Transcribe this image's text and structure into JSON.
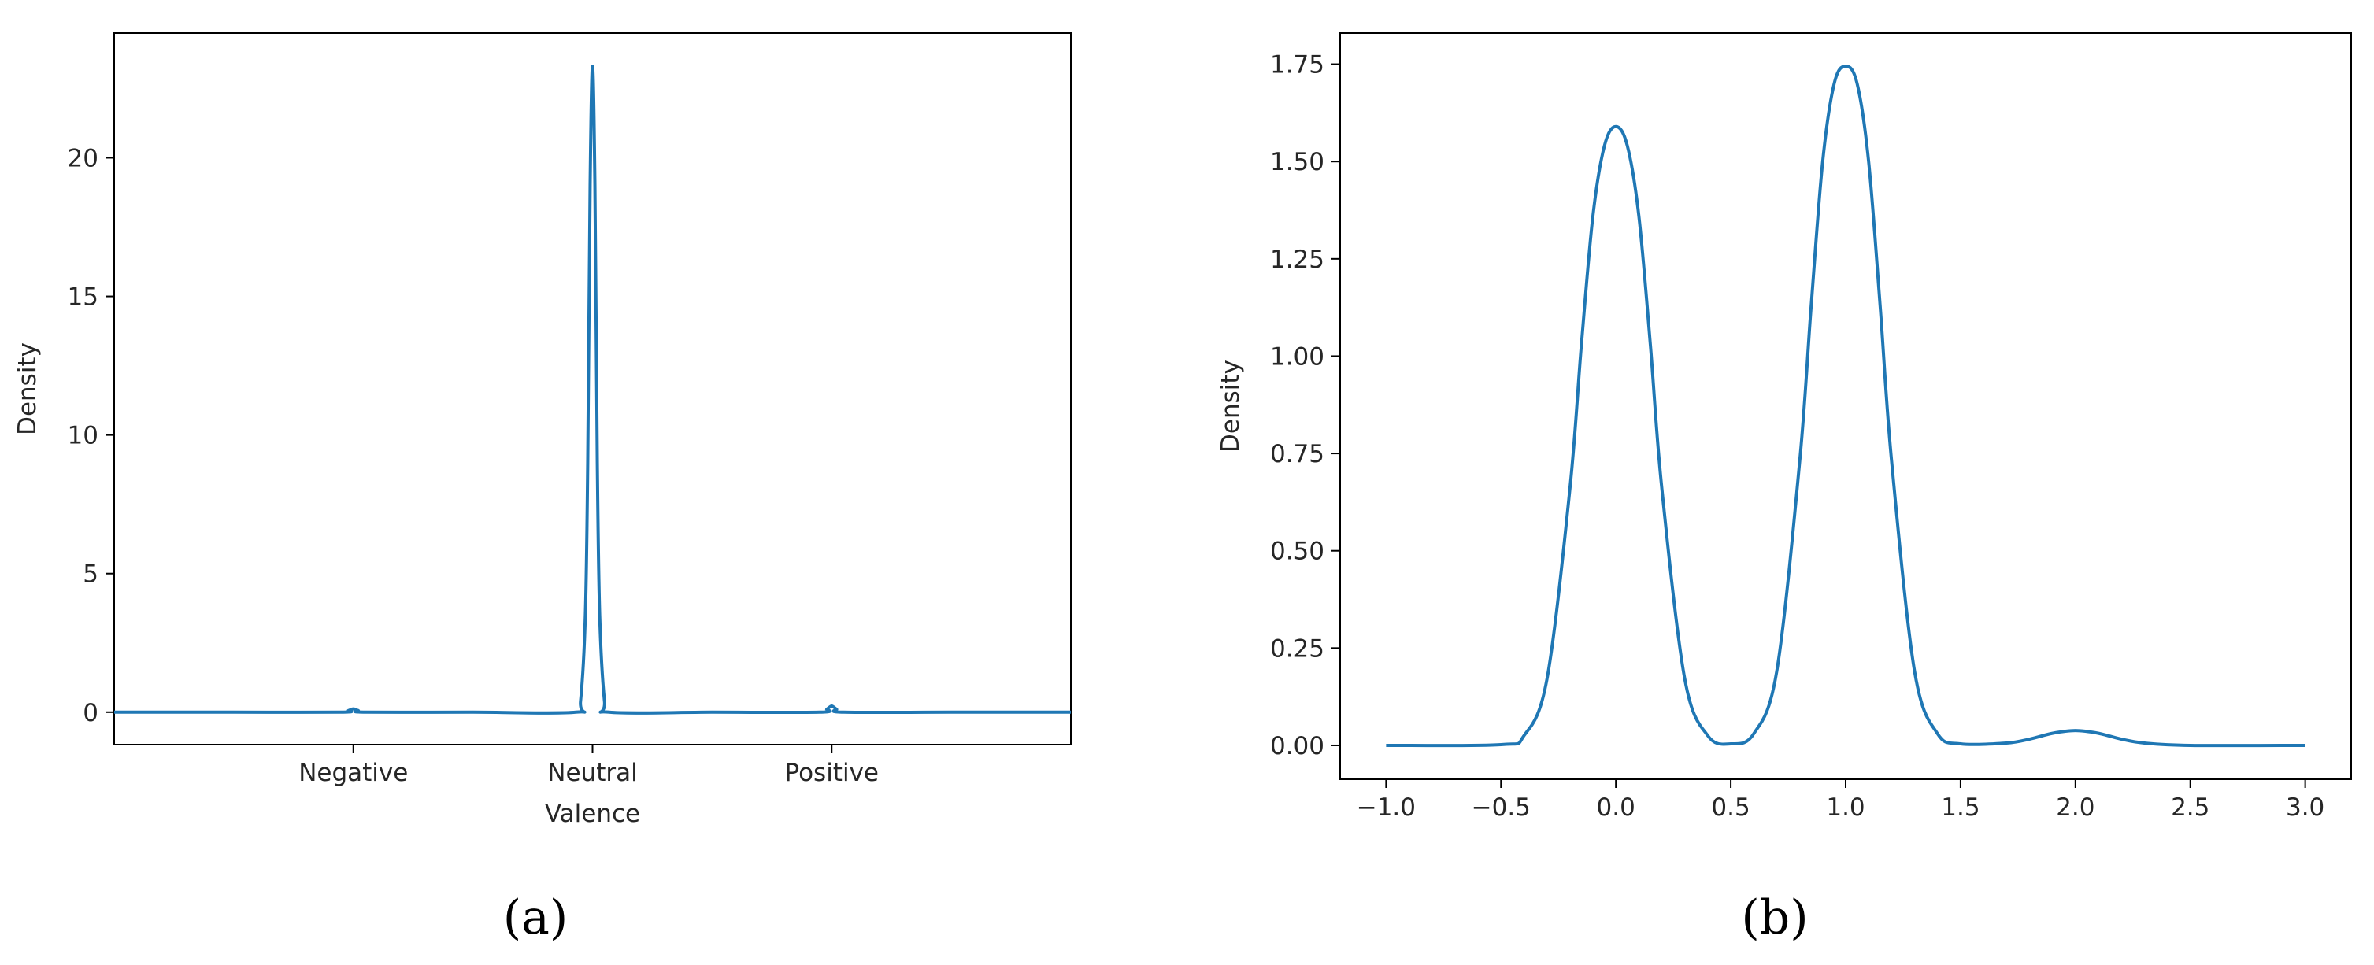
{
  "chart_data": [
    {
      "type": "line",
      "panel_label": "(a)",
      "xlabel": "Valence",
      "ylabel": "Density",
      "categories": [
        "Negative",
        "Neutral",
        "Positive"
      ],
      "category_x": [
        -1,
        0,
        1
      ],
      "xlim": [
        -2.0,
        2.0
      ],
      "ylim": [
        -1.17,
        24.5
      ],
      "yticks": [
        0,
        5,
        10,
        15,
        20
      ],
      "grid": false,
      "series": [
        {
          "color": "#1f77b4",
          "x": [
            -2.0,
            -1.5,
            -1.05,
            -1.02,
            -1.0,
            -0.98,
            -0.95,
            -0.5,
            -0.07,
            -0.05,
            -0.03,
            -0.02,
            -0.01,
            0.0,
            0.01,
            0.02,
            0.03,
            0.05,
            0.07,
            0.5,
            0.95,
            0.98,
            1.0,
            1.02,
            1.05,
            1.5,
            2.0
          ],
          "y": [
            0,
            0,
            0,
            0.06,
            0.12,
            0.06,
            0,
            0,
            0,
            0.4,
            3.5,
            9.0,
            19.0,
            23.3,
            19.0,
            9.0,
            3.5,
            0.4,
            0,
            0,
            0,
            0.11,
            0.22,
            0.11,
            0,
            0,
            0
          ]
        }
      ]
    },
    {
      "type": "line",
      "panel_label": "(b)",
      "xlabel": "",
      "ylabel": "Density",
      "xlim": [
        -1.2,
        3.2
      ],
      "ylim": [
        -0.087,
        1.83
      ],
      "xticks": [
        -1.0,
        -0.5,
        0.0,
        0.5,
        1.0,
        1.5,
        2.0,
        2.5,
        3.0
      ],
      "xtick_labels": [
        "−1.0",
        "−0.5",
        "0.0",
        "0.5",
        "1.0",
        "1.5",
        "2.0",
        "2.5",
        "3.0"
      ],
      "yticks": [
        0.0,
        0.25,
        0.5,
        0.75,
        1.0,
        1.25,
        1.5,
        1.75
      ],
      "ytick_labels": [
        "0.00",
        "0.25",
        "0.50",
        "0.75",
        "1.00",
        "1.25",
        "1.50",
        "1.75"
      ],
      "grid": false,
      "series": [
        {
          "color": "#1f77b4",
          "x": [
            -1.0,
            -0.5,
            -0.4,
            -0.3,
            -0.2,
            -0.15,
            -0.1,
            -0.05,
            0.0,
            0.05,
            0.1,
            0.15,
            0.2,
            0.3,
            0.4,
            0.5,
            0.6,
            0.7,
            0.8,
            0.85,
            0.9,
            0.95,
            1.0,
            1.05,
            1.1,
            1.15,
            1.2,
            1.3,
            1.4,
            1.5,
            1.7,
            1.8,
            1.9,
            2.0,
            2.1,
            2.2,
            2.3,
            2.5,
            3.0
          ],
          "y": [
            0.0,
            0.002,
            0.025,
            0.17,
            0.66,
            1.03,
            1.36,
            1.54,
            1.59,
            1.54,
            1.36,
            1.03,
            0.66,
            0.17,
            0.025,
            0.004,
            0.03,
            0.19,
            0.73,
            1.13,
            1.5,
            1.7,
            1.745,
            1.7,
            1.5,
            1.13,
            0.73,
            0.19,
            0.03,
            0.004,
            0.006,
            0.016,
            0.031,
            0.038,
            0.031,
            0.016,
            0.006,
            0.0,
            0.0
          ]
        }
      ]
    }
  ]
}
